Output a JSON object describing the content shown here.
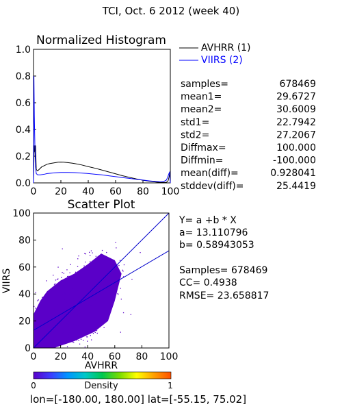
{
  "header": {
    "title": "TCI,  Oct. 6 2012 (week 40)"
  },
  "colors": {
    "avhrr": "#000000",
    "viirs": "#0000ff",
    "fit_line": "#0000cc",
    "scatter_dense": "#5a00c8"
  },
  "chart_data": [
    {
      "type": "line",
      "title": "Normalized Histogram",
      "xlabel": "",
      "ylabel": "",
      "xlim": [
        0,
        100
      ],
      "ylim": [
        0,
        1.0
      ],
      "x_ticks": [
        "0",
        "20",
        "40",
        "60",
        "80",
        "100"
      ],
      "y_ticks": [
        "0.0",
        "0.2",
        "0.4",
        "0.6",
        "0.8",
        "1.0"
      ],
      "legend_position": "right",
      "series": [
        {
          "name": "AVHRR (1)",
          "color": "#000000",
          "x": [
            0,
            0.5,
            1,
            1.5,
            2,
            3,
            4,
            6,
            8,
            10,
            12,
            15,
            18,
            20,
            22,
            25,
            28,
            30,
            35,
            40,
            45,
            50,
            55,
            60,
            65,
            70,
            75,
            80,
            85,
            90,
            93,
            95,
            97,
            98,
            98.5,
            99,
            99.5,
            100
          ],
          "y": [
            0.0,
            0.28,
            0.23,
            0.28,
            0.1,
            0.09,
            0.1,
            0.12,
            0.13,
            0.14,
            0.145,
            0.15,
            0.155,
            0.156,
            0.155,
            0.152,
            0.148,
            0.145,
            0.135,
            0.122,
            0.11,
            0.096,
            0.082,
            0.068,
            0.054,
            0.042,
            0.03,
            0.02,
            0.012,
            0.006,
            0.004,
            0.003,
            0.004,
            0.01,
            0.02,
            0.04,
            0.07,
            0.0
          ]
        },
        {
          "name": "VIIRS (2)",
          "color": "#0000ff",
          "x": [
            0,
            0.3,
            0.6,
            1,
            1.5,
            2,
            3,
            5,
            8,
            10,
            15,
            20,
            25,
            30,
            35,
            40,
            45,
            50,
            55,
            60,
            65,
            70,
            75,
            80,
            85,
            90,
            93,
            95,
            97,
            98,
            99,
            99.5,
            100
          ],
          "y": [
            0.0,
            0.8,
            0.5,
            0.28,
            0.12,
            0.07,
            0.06,
            0.06,
            0.065,
            0.07,
            0.075,
            0.078,
            0.078,
            0.077,
            0.074,
            0.07,
            0.065,
            0.06,
            0.053,
            0.047,
            0.04,
            0.034,
            0.027,
            0.021,
            0.015,
            0.01,
            0.008,
            0.01,
            0.02,
            0.04,
            0.07,
            0.08,
            0.0
          ]
        }
      ],
      "stats": [
        {
          "label": "samples=",
          "value": "678469"
        },
        {
          "label": "mean1=",
          "value": "29.6727"
        },
        {
          "label": "mean2=",
          "value": "30.6009"
        },
        {
          "label": "std1=",
          "value": "22.7942"
        },
        {
          "label": "std2=",
          "value": "27.2067"
        },
        {
          "label": "Diffmax=",
          "value": "100.000"
        },
        {
          "label": "Diffmin=",
          "value": "-100.000"
        },
        {
          "label": "mean(diff)=",
          "value": "0.928041"
        },
        {
          "label": "stddev(diff)=",
          "value": "25.4419"
        }
      ]
    },
    {
      "type": "scatter",
      "title": "Scatter Plot",
      "xlabel": "AVHRR",
      "ylabel": "VIIRS",
      "xlim": [
        0,
        100
      ],
      "ylim": [
        0,
        100
      ],
      "x_ticks": [
        "0",
        "20",
        "40",
        "60",
        "80",
        "100"
      ],
      "y_ticks": [
        "0",
        "20",
        "40",
        "60",
        "80",
        "100"
      ],
      "lines": [
        {
          "name": "one-to-one",
          "x": [
            0,
            100
          ],
          "y": [
            0,
            100
          ]
        },
        {
          "name": "fit",
          "x": [
            0,
            100
          ],
          "y": [
            13.110796,
            72.054
          ]
        }
      ],
      "density_cloud": {
        "description": "dense point cloud",
        "center": [
          28,
          28
        ],
        "points_polygon": [
          [
            0,
            0
          ],
          [
            15,
            0
          ],
          [
            30,
            5
          ],
          [
            45,
            12
          ],
          [
            55,
            20
          ],
          [
            60,
            35
          ],
          [
            65,
            55
          ],
          [
            60,
            65
          ],
          [
            50,
            70
          ],
          [
            40,
            62
          ],
          [
            30,
            55
          ],
          [
            20,
            50
          ],
          [
            10,
            42
          ],
          [
            5,
            35
          ],
          [
            0,
            25
          ]
        ]
      },
      "fit_text": {
        "equation": "Y= a +b * X",
        "a": "a= 13.110796",
        "b": "b= 0.58943053",
        "samples": "Samples= 678469",
        "cc": "CC=  0.4938",
        "rmse": "RMSE= 23.658817"
      },
      "colorbar": {
        "label": "Density",
        "min_label": "0",
        "max_label": "1",
        "colors": [
          "#5a00c8",
          "#3c3cff",
          "#0096ff",
          "#00c8c8",
          "#00c850",
          "#78dc00",
          "#ffff00",
          "#ffa000",
          "#ff5000"
        ]
      }
    }
  ],
  "footer": {
    "text": "lon=[-180.00, 180.00] lat=[-55.15, 75.02]"
  }
}
